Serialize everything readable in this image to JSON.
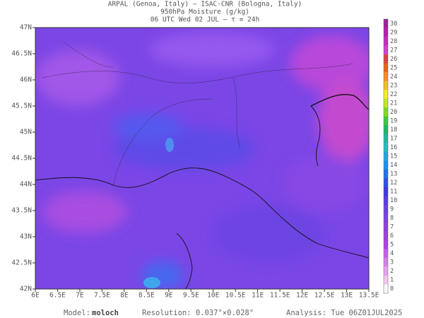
{
  "header": {
    "line1": "ARPAL (Genoa, Italy)  —  ISAC-CNR (Bologna, Italy)",
    "line2": "950hPa Moisture (g/kg)",
    "line3": "06 UTC Wed 02 JUL  —  τ = 24h"
  },
  "map": {
    "lat_labels": [
      "47N",
      "46.5N",
      "46N",
      "45.5N",
      "45N",
      "44.5N",
      "44N",
      "43.5N",
      "43N",
      "42.5N",
      "42N"
    ],
    "lon_labels": [
      "6E",
      "6.5E",
      "7E",
      "7.5E",
      "8E",
      "8.5E",
      "9E",
      "9.5E",
      "10E",
      "10.5E",
      "11E",
      "11.5E",
      "12E",
      "12.5E",
      "13E",
      "13.5E"
    ]
  },
  "colorbar": {
    "labels": [
      "30",
      "29",
      "28",
      "27",
      "26",
      "25",
      "24",
      "23",
      "22",
      "21",
      "20",
      "19",
      "18",
      "17",
      "16",
      "15",
      "14",
      "13",
      "12",
      "11",
      "10",
      "9",
      "8",
      "7",
      "6",
      "5",
      "4",
      "3",
      "2",
      "1",
      "0"
    ]
  },
  "footer": {
    "model_label": "Model:",
    "model": "moloch",
    "resolution": "Resolution: 0.037°×0.028°",
    "analysis": "Analysis: Tue 06Z01JUL2025"
  }
}
